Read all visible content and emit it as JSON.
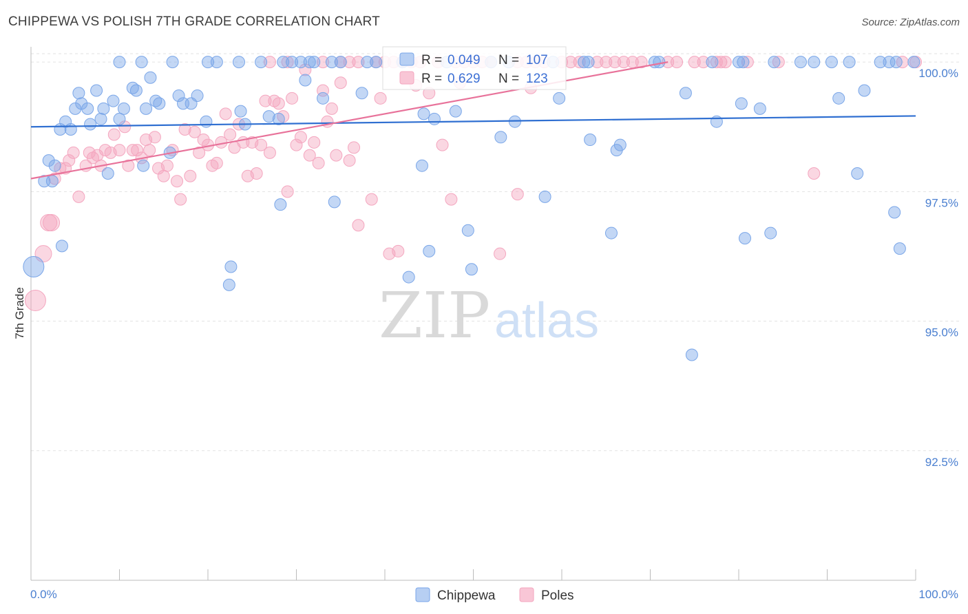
{
  "title": "CHIPPEWA VS POLISH 7TH GRADE CORRELATION CHART",
  "source": "Source: ZipAtlas.com",
  "watermark": {
    "zip": "ZIP",
    "atlas": "atlas"
  },
  "colors": {
    "chippewa": "#7aa6e8",
    "chippewa_line": "#2f6fd1",
    "poles": "#f4a6bf",
    "poles_line": "#e8729a",
    "tick": "#4a7fd0"
  },
  "stats": [
    {
      "r_label": "R =",
      "r": "0.049",
      "n_label": "N =",
      "n": "107"
    },
    {
      "r_label": "R =",
      "r": "0.629",
      "n_label": "N =",
      "n": "123"
    }
  ],
  "chart_data": {
    "type": "scatter",
    "title": "CHIPPEWA VS POLISH 7TH GRADE CORRELATION CHART",
    "xlabel": "",
    "ylabel": "7th Grade",
    "xlim": [
      0,
      100
    ],
    "ylim": [
      90.0,
      100.4
    ],
    "x_tick_labels": [
      "0.0%",
      "100.0%"
    ],
    "y_ticks": [
      92.5,
      95.0,
      97.5,
      100.0
    ],
    "y_tick_labels": [
      "92.5%",
      "95.0%",
      "97.5%",
      "100.0%"
    ],
    "grid": true,
    "legend": "bottom-center",
    "series": [
      {
        "name": "Chippewa",
        "trend": [
          [
            0,
            98.75
          ],
          [
            100,
            98.96
          ]
        ],
        "points": [
          [
            0.3,
            96.05
          ],
          [
            1.5,
            97.7
          ],
          [
            2.0,
            98.1
          ],
          [
            2.4,
            97.7
          ],
          [
            2.7,
            98.0
          ],
          [
            3.3,
            98.7
          ],
          [
            3.5,
            96.45
          ],
          [
            3.9,
            98.85
          ],
          [
            4.5,
            98.7
          ],
          [
            5.0,
            99.1
          ],
          [
            5.4,
            99.4
          ],
          [
            5.7,
            99.2
          ],
          [
            6.4,
            99.1
          ],
          [
            6.7,
            98.8
          ],
          [
            7.4,
            99.45
          ],
          [
            7.9,
            98.9
          ],
          [
            8.2,
            99.1
          ],
          [
            8.7,
            97.85
          ],
          [
            9.3,
            99.25
          ],
          [
            10.0,
            98.9
          ],
          [
            10.5,
            99.1
          ],
          [
            11.5,
            99.5
          ],
          [
            11.9,
            99.45
          ],
          [
            12.7,
            98.0
          ],
          [
            13.0,
            99.1
          ],
          [
            13.5,
            99.7
          ],
          [
            14.1,
            99.25
          ],
          [
            14.5,
            99.2
          ],
          [
            15.7,
            98.25
          ],
          [
            16.7,
            99.35
          ],
          [
            17.2,
            99.2
          ],
          [
            18.1,
            99.2
          ],
          [
            18.8,
            99.35
          ],
          [
            19.8,
            98.85
          ],
          [
            22.6,
            96.05
          ],
          [
            22.4,
            95.7
          ],
          [
            23.7,
            99.05
          ],
          [
            24.2,
            98.8
          ],
          [
            26.9,
            98.95
          ],
          [
            28.0,
            98.9
          ],
          [
            28.2,
            97.25
          ],
          [
            31.0,
            99.65
          ],
          [
            33.0,
            99.3
          ],
          [
            34.3,
            97.3
          ],
          [
            37.4,
            99.4
          ],
          [
            42.7,
            95.85
          ],
          [
            44.2,
            98.0
          ],
          [
            44.4,
            99.0
          ],
          [
            45.0,
            96.35
          ],
          [
            45.6,
            98.9
          ],
          [
            48.0,
            99.05
          ],
          [
            49.4,
            96.75
          ],
          [
            49.8,
            96.0
          ],
          [
            53.1,
            98.55
          ],
          [
            54.7,
            98.85
          ],
          [
            58.1,
            97.4
          ],
          [
            59.7,
            99.3
          ],
          [
            63.2,
            98.5
          ],
          [
            65.6,
            96.7
          ],
          [
            66.2,
            98.3
          ],
          [
            66.6,
            98.4
          ],
          [
            74.0,
            99.4
          ],
          [
            74.7,
            94.35
          ],
          [
            77.5,
            98.85
          ],
          [
            80.3,
            99.2
          ],
          [
            80.7,
            96.6
          ],
          [
            82.4,
            99.1
          ],
          [
            83.6,
            96.7
          ],
          [
            91.3,
            99.3
          ],
          [
            93.4,
            97.85
          ],
          [
            94.2,
            99.45
          ],
          [
            97.6,
            97.1
          ],
          [
            98.2,
            96.4
          ],
          [
            10,
            100
          ],
          [
            12.5,
            100
          ],
          [
            16,
            100
          ],
          [
            20,
            100
          ],
          [
            21,
            100
          ],
          [
            23.5,
            100
          ],
          [
            26,
            100
          ],
          [
            28.5,
            100
          ],
          [
            29.5,
            100
          ],
          [
            30.5,
            100
          ],
          [
            31.5,
            100
          ],
          [
            32,
            100
          ],
          [
            34,
            100
          ],
          [
            35,
            100
          ],
          [
            38,
            100
          ],
          [
            39,
            100
          ],
          [
            42,
            100
          ],
          [
            47,
            100
          ],
          [
            52,
            100
          ],
          [
            54,
            100
          ],
          [
            59,
            100
          ],
          [
            62.5,
            100
          ],
          [
            63,
            100
          ],
          [
            70.5,
            100
          ],
          [
            71,
            100
          ],
          [
            77,
            100
          ],
          [
            80,
            100
          ],
          [
            80.5,
            100
          ],
          [
            84,
            100
          ],
          [
            87,
            100
          ],
          [
            88.5,
            100
          ],
          [
            90.5,
            100
          ],
          [
            92.5,
            100
          ],
          [
            96,
            100
          ],
          [
            97,
            100
          ],
          [
            97.8,
            100
          ],
          [
            99.8,
            100
          ]
        ]
      },
      {
        "name": "Poles",
        "trend": [
          [
            0,
            97.75
          ],
          [
            72,
            100.0
          ]
        ],
        "points": [
          [
            0.5,
            95.4
          ],
          [
            1.4,
            96.3
          ],
          [
            2.0,
            96.9
          ],
          [
            2.3,
            96.9
          ],
          [
            2.7,
            97.75
          ],
          [
            3.3,
            97.95
          ],
          [
            3.9,
            97.95
          ],
          [
            4.3,
            98.1
          ],
          [
            4.8,
            98.25
          ],
          [
            5.4,
            97.4
          ],
          [
            6.2,
            98.0
          ],
          [
            6.6,
            98.25
          ],
          [
            7.0,
            98.15
          ],
          [
            7.5,
            98.2
          ],
          [
            7.9,
            98.0
          ],
          [
            8.4,
            98.3
          ],
          [
            9.0,
            98.25
          ],
          [
            9.4,
            98.6
          ],
          [
            10.0,
            98.3
          ],
          [
            10.6,
            98.75
          ],
          [
            11.0,
            98.0
          ],
          [
            11.5,
            98.3
          ],
          [
            12.0,
            98.3
          ],
          [
            12.5,
            98.15
          ],
          [
            13.0,
            98.5
          ],
          [
            13.4,
            98.3
          ],
          [
            14.0,
            98.55
          ],
          [
            14.4,
            97.95
          ],
          [
            15.0,
            97.8
          ],
          [
            15.4,
            98.0
          ],
          [
            16.0,
            98.3
          ],
          [
            16.5,
            97.7
          ],
          [
            16.9,
            97.35
          ],
          [
            17.4,
            98.7
          ],
          [
            18.0,
            97.8
          ],
          [
            18.5,
            98.65
          ],
          [
            19.0,
            98.25
          ],
          [
            19.5,
            98.5
          ],
          [
            20.0,
            98.4
          ],
          [
            20.5,
            98.0
          ],
          [
            21.0,
            98.05
          ],
          [
            21.5,
            98.45
          ],
          [
            22.0,
            99.0
          ],
          [
            22.5,
            98.6
          ],
          [
            23.0,
            98.35
          ],
          [
            23.5,
            98.8
          ],
          [
            24.0,
            98.45
          ],
          [
            24.5,
            97.8
          ],
          [
            25.0,
            98.45
          ],
          [
            25.5,
            97.85
          ],
          [
            26.0,
            98.4
          ],
          [
            26.5,
            99.25
          ],
          [
            27.0,
            98.25
          ],
          [
            27.5,
            99.25
          ],
          [
            28.0,
            99.2
          ],
          [
            28.5,
            98.95
          ],
          [
            29.0,
            97.5
          ],
          [
            29.5,
            99.3
          ],
          [
            30.0,
            98.4
          ],
          [
            30.5,
            98.55
          ],
          [
            31.0,
            99.85
          ],
          [
            31.5,
            98.2
          ],
          [
            32.0,
            98.45
          ],
          [
            32.5,
            98.05
          ],
          [
            33.0,
            99.45
          ],
          [
            33.5,
            98.85
          ],
          [
            34.0,
            99.1
          ],
          [
            34.5,
            98.2
          ],
          [
            35.0,
            99.6
          ],
          [
            36.0,
            98.1
          ],
          [
            36.5,
            98.35
          ],
          [
            37.0,
            96.85
          ],
          [
            38.5,
            97.35
          ],
          [
            40.5,
            96.3
          ],
          [
            41.5,
            96.35
          ],
          [
            46.5,
            98.4
          ],
          [
            47.5,
            97.35
          ],
          [
            53.0,
            96.3
          ],
          [
            55.0,
            97.45
          ],
          [
            88.5,
            97.85
          ],
          [
            27,
            100
          ],
          [
            29,
            100
          ],
          [
            33,
            100
          ],
          [
            35,
            100
          ],
          [
            36,
            100
          ],
          [
            37,
            100
          ],
          [
            39,
            100
          ],
          [
            40,
            100
          ],
          [
            41,
            100
          ],
          [
            42,
            100
          ],
          [
            43,
            100
          ],
          [
            44,
            100
          ],
          [
            46,
            100
          ],
          [
            48,
            100
          ],
          [
            49,
            100
          ],
          [
            50,
            100
          ],
          [
            51,
            100
          ],
          [
            52,
            100
          ],
          [
            55,
            100
          ],
          [
            56,
            100
          ],
          [
            57,
            100
          ],
          [
            58,
            100
          ],
          [
            60,
            100
          ],
          [
            61,
            100
          ],
          [
            62,
            100
          ],
          [
            64,
            100
          ],
          [
            65,
            100
          ],
          [
            66,
            100
          ],
          [
            67,
            100
          ],
          [
            68,
            100
          ],
          [
            69,
            100
          ],
          [
            72,
            100
          ],
          [
            73,
            100
          ],
          [
            75,
            100
          ],
          [
            76,
            100
          ],
          [
            77.5,
            100
          ],
          [
            78,
            100
          ],
          [
            78.5,
            100
          ],
          [
            81,
            100
          ],
          [
            84.5,
            100
          ],
          [
            98.5,
            100
          ],
          [
            100,
            100
          ],
          [
            56.5,
            99.5
          ],
          [
            48.5,
            99.6
          ],
          [
            45,
            99.4
          ],
          [
            43.5,
            99.55
          ],
          [
            39.5,
            99.3
          ]
        ]
      }
    ]
  },
  "legend": [
    {
      "label": "Chippewa"
    },
    {
      "label": "Poles"
    }
  ]
}
